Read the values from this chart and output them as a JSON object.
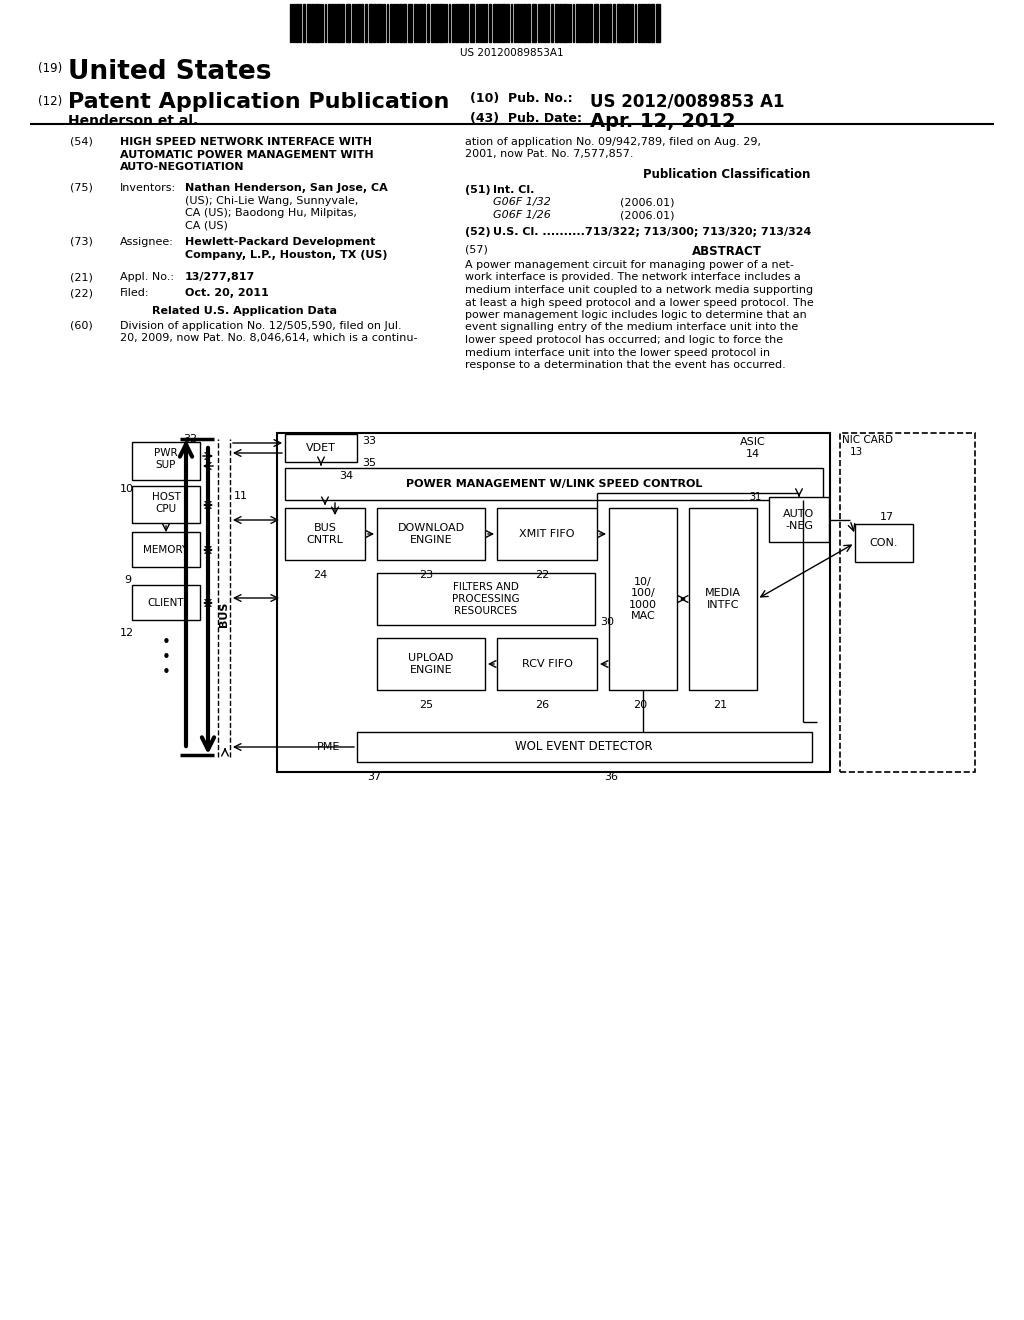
{
  "bg_color": "#ffffff",
  "barcode_text": "US 20120089853A1",
  "title_19": "(19)",
  "title_us": "United States",
  "title_12": "(12)",
  "title_pat": "Patent Application Publication",
  "title_henderson": "Henderson et al.",
  "pub_no_label": "(10)  Pub. No.:",
  "pub_no_val": "US 2012/0089853 A1",
  "pub_date_label": "(43)  Pub. Date:",
  "pub_date_val": "Apr. 12, 2012",
  "field54_label": "(54)",
  "field54_lines": [
    "HIGH SPEED NETWORK INTERFACE WITH",
    "AUTOMATIC POWER MANAGEMENT WITH",
    "AUTO-NEGOTIATION"
  ],
  "field75_label": "(75)",
  "field75_key": "Inventors:",
  "field75_lines": [
    "Nathan Henderson, San Jose, CA",
    "(US); Chi-Lie Wang, Sunnyvale,",
    "CA (US); Baodong Hu, Milpitas,",
    "CA (US)"
  ],
  "field75_bold": [
    true,
    false,
    false,
    false
  ],
  "field73_label": "(73)",
  "field73_key": "Assignee:",
  "field73_lines": [
    "Hewlett-Packard Development",
    "Company, L.P., Houston, TX (US)"
  ],
  "field21_label": "(21)",
  "field21_key": "Appl. No.:",
  "field21_val": "13/277,817",
  "field22_label": "(22)",
  "field22_key": "Filed:",
  "field22_val": "Oct. 20, 2011",
  "related_title": "Related U.S. Application Data",
  "field60_label": "(60)",
  "field60_lines": [
    "Division of application No. 12/505,590, filed on Jul.",
    "20, 2009, now Pat. No. 8,046,614, which is a continu-"
  ],
  "right_cont_lines": [
    "ation of application No. 09/942,789, filed on Aug. 29,",
    "2001, now Pat. No. 7,577,857."
  ],
  "pub_class_title": "Publication Classification",
  "field51_label": "(51)",
  "field51_key": "Int. Cl.",
  "field51_g1": "G06F 1/32",
  "field51_g1_year": "(2006.01)",
  "field51_g2": "G06F 1/26",
  "field51_g2_year": "(2006.01)",
  "field52_label": "(52)",
  "field52_key": "U.S. Cl. ..........",
  "field52_val": "713/322; 713/300; 713/320; 713/324",
  "field57_label": "(57)",
  "field57_key": "ABSTRACT",
  "field57_lines": [
    "A power management circuit for managing power of a net-",
    "work interface is provided. The network interface includes a",
    "medium interface unit coupled to a network media supporting",
    "at least a high speed protocol and a lower speed protocol. The",
    "power management logic includes logic to determine that an",
    "event signalling entry of the medium interface unit into the",
    "lower speed protocol has occurred; and logic to force the",
    "medium interface unit into the lower speed protocol in",
    "response to a determination that the event has occurred."
  ]
}
